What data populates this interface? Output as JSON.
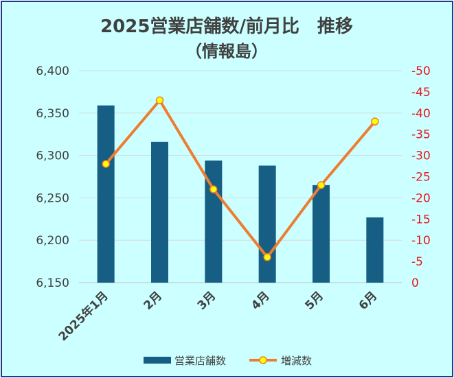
{
  "chart_data": {
    "type": "bar+line",
    "title_line1": "2025営業店舗数/前月比　推移",
    "title_line2": "（情報島）",
    "categories": [
      "2025年1月",
      "2月",
      "3月",
      "4月",
      "5月",
      "6月"
    ],
    "series": [
      {
        "name": "営業店舗数",
        "type": "bar",
        "axis": "left",
        "values": [
          6359,
          6316,
          6294,
          6288,
          6265,
          6227
        ],
        "color": "#165e83"
      },
      {
        "name": "増減数",
        "type": "line",
        "axis": "right",
        "values": [
          -28,
          -43,
          -22,
          -6,
          -23,
          -38
        ],
        "color": "#ed7d31",
        "marker_color": "#ffff00"
      }
    ],
    "y_left": {
      "ylim": [
        6150,
        6400
      ],
      "ticks": [
        6400,
        6350,
        6300,
        6250,
        6200,
        6150
      ],
      "tick_labels": [
        "6,400",
        "6,350",
        "6,300",
        "6,250",
        "6,200",
        "6,150"
      ]
    },
    "y_right": {
      "ylim": [
        0,
        -50
      ],
      "reversed": true,
      "ticks": [
        -50,
        -45,
        -40,
        -35,
        -30,
        -25,
        -20,
        -15,
        -10,
        -5,
        0
      ],
      "tick_labels": [
        "-50",
        "-45",
        "-40",
        "-35",
        "-30",
        "-25",
        "-20",
        "-15",
        "-10",
        "-5",
        "0"
      ],
      "color": "#e8161b"
    },
    "grid": true,
    "legend_position": "bottom",
    "background": "#ccffff",
    "border_color": "#1f3b8c"
  }
}
